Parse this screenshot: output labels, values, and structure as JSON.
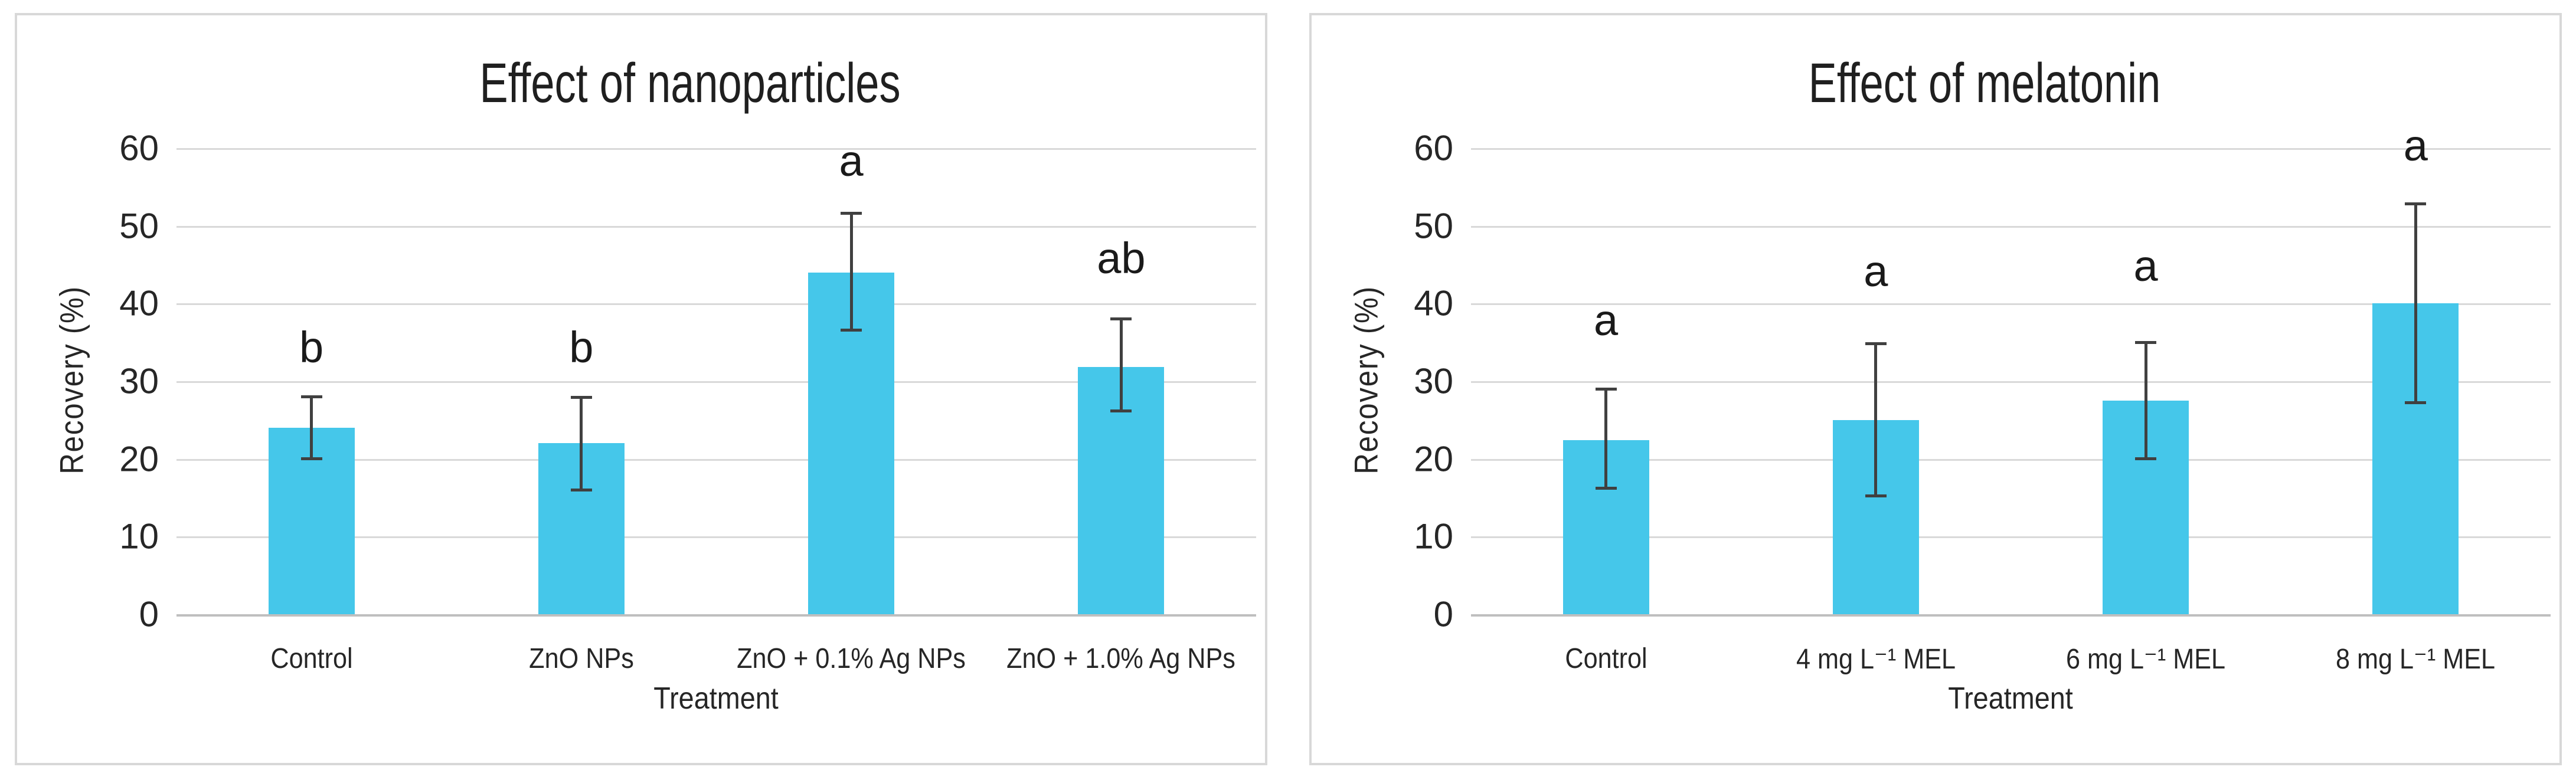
{
  "style": {
    "background": "#ffffff",
    "panel_border_color": "#d8d8d8",
    "gridline_color": "#d9d9d9",
    "axis_line_color": "#bfbfbf",
    "text_color": "#262626",
    "title_color": "#1f1f1f",
    "bar_color": "#45c7ea",
    "error_bar_color": "#404040"
  },
  "chart_data": [
    {
      "type": "bar",
      "title": "Effect of nanoparticles",
      "xlabel": "Treatment",
      "ylabel": "Recovery (%)",
      "ylim": [
        0,
        60
      ],
      "yticks": [
        0,
        10,
        20,
        30,
        40,
        50,
        60
      ],
      "grid": "horizontal",
      "legend": "none",
      "bar_color": "#45c7ea",
      "error_bar_color": "#404040",
      "categories": [
        "Control",
        "ZnO NPs",
        "ZnO + 0.1% Ag NPs",
        "ZnO + 1.0% Ag NPs"
      ],
      "values": [
        24,
        22,
        44,
        31.8
      ],
      "error_low": [
        20,
        16,
        36.6,
        26.2
      ],
      "error_high": [
        28,
        27.9,
        51.6,
        38
      ],
      "sig_letters": [
        "b",
        "b",
        "a",
        "ab"
      ],
      "sig_letter_y": [
        31.5,
        31.5,
        55.5,
        43
      ]
    },
    {
      "type": "bar",
      "title": "Effect of melatonin",
      "xlabel": "Treatment",
      "ylabel": "Recovery (%)",
      "ylim": [
        0,
        60
      ],
      "yticks": [
        0,
        10,
        20,
        30,
        40,
        50,
        60
      ],
      "grid": "horizontal",
      "legend": "none",
      "bar_color": "#45c7ea",
      "error_bar_color": "#404040",
      "categories": [
        "Control",
        "4 mg L⁻¹ MEL",
        "6 mg L⁻¹ MEL",
        "8 mg L⁻¹ MEL"
      ],
      "values": [
        22.4,
        25,
        27.5,
        40
      ],
      "error_low": [
        16.2,
        15.2,
        20,
        27.2
      ],
      "error_high": [
        29,
        34.8,
        35,
        52.8
      ],
      "sig_letters": [
        "a",
        "a",
        "a",
        "a"
      ],
      "sig_letter_y": [
        35,
        41.3,
        42,
        57.5
      ]
    }
  ]
}
